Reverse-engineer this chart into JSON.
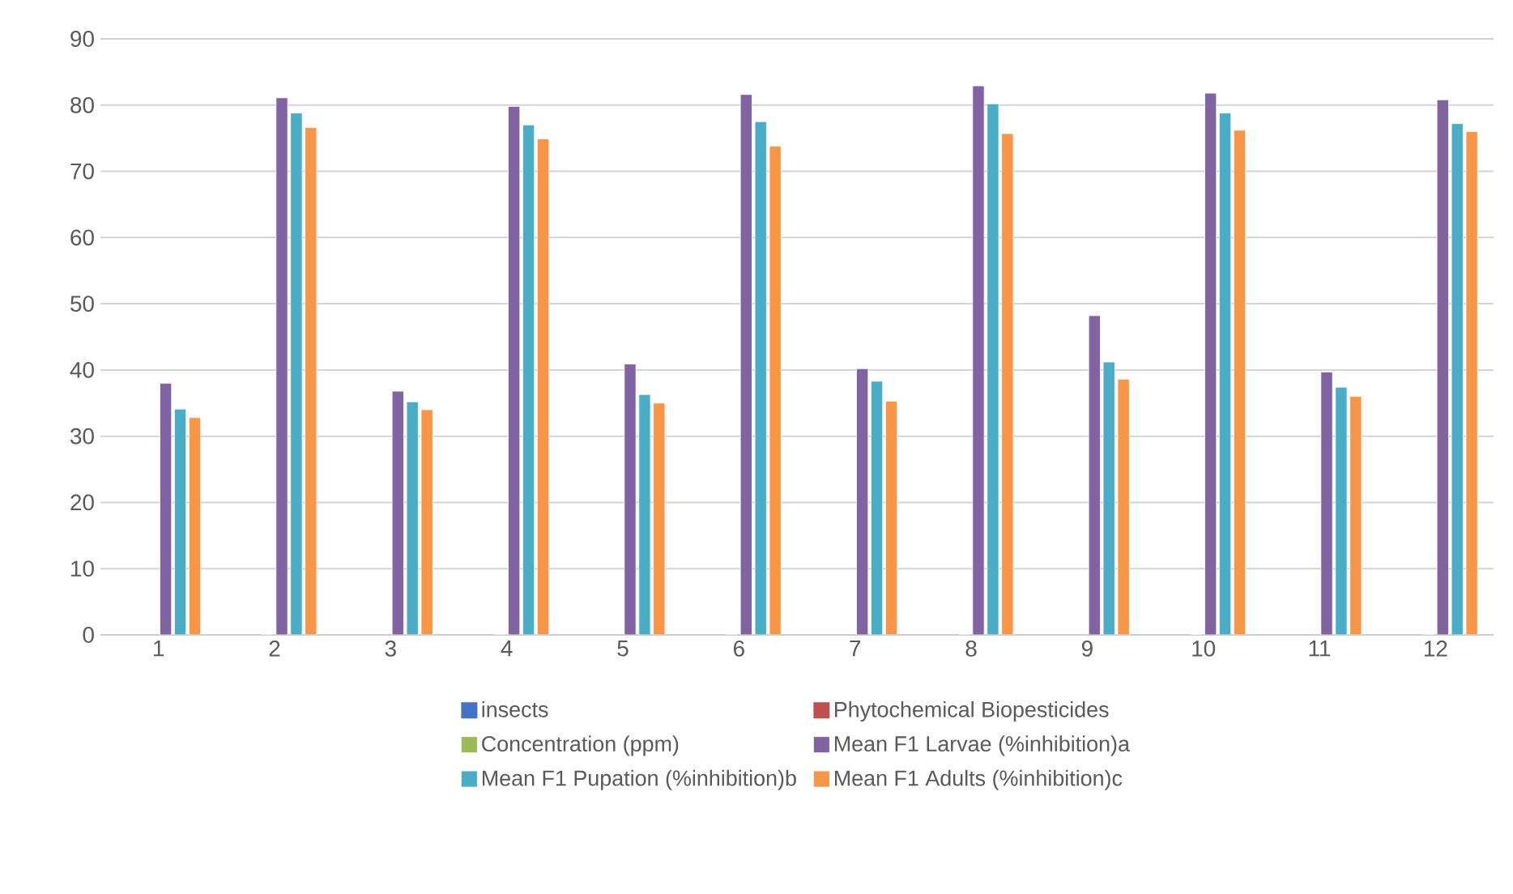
{
  "chart_data": {
    "type": "bar",
    "categories": [
      "1",
      "2",
      "3",
      "4",
      "5",
      "6",
      "7",
      "8",
      "9",
      "10",
      "11",
      "12"
    ],
    "series": [
      {
        "name": "insects",
        "color": "#4472c4",
        "values": [
          null,
          null,
          null,
          null,
          null,
          null,
          null,
          null,
          null,
          null,
          null,
          null
        ]
      },
      {
        "name": "Phytochemical Biopesticides",
        "color": "#c0504d",
        "values": [
          null,
          null,
          null,
          null,
          null,
          null,
          null,
          null,
          null,
          null,
          null,
          null
        ]
      },
      {
        "name": "Concentration (ppm)",
        "color": "#9bbb59",
        "values": [
          null,
          0,
          null,
          0,
          null,
          0,
          null,
          0,
          null,
          0,
          null,
          0
        ]
      },
      {
        "name": "Mean F1 Larvae (%inhibition)a",
        "color": "#8064a2",
        "values": [
          38.0,
          81.1,
          36.8,
          79.8,
          40.9,
          81.6,
          40.2,
          82.9,
          48.2,
          81.8,
          39.7,
          80.8
        ]
      },
      {
        "name": "Mean F1 Pupation (%inhibition)b",
        "color": "#4bacc6",
        "values": [
          34.1,
          78.8,
          35.2,
          77.0,
          36.3,
          77.5,
          38.3,
          80.2,
          41.2,
          78.8,
          37.4,
          77.2
        ]
      },
      {
        "name": "Mean F1 Adults (%inhibition)c",
        "color": "#f79646",
        "values": [
          32.8,
          76.6,
          34.0,
          74.9,
          35.0,
          73.8,
          35.3,
          75.7,
          38.6,
          76.2,
          36.0,
          76.0
        ]
      }
    ],
    "ylim": [
      0,
      90
    ],
    "yticks": [
      0,
      10,
      20,
      30,
      40,
      50,
      60,
      70,
      80,
      90
    ],
    "grid": "y",
    "legend": "bottom"
  }
}
